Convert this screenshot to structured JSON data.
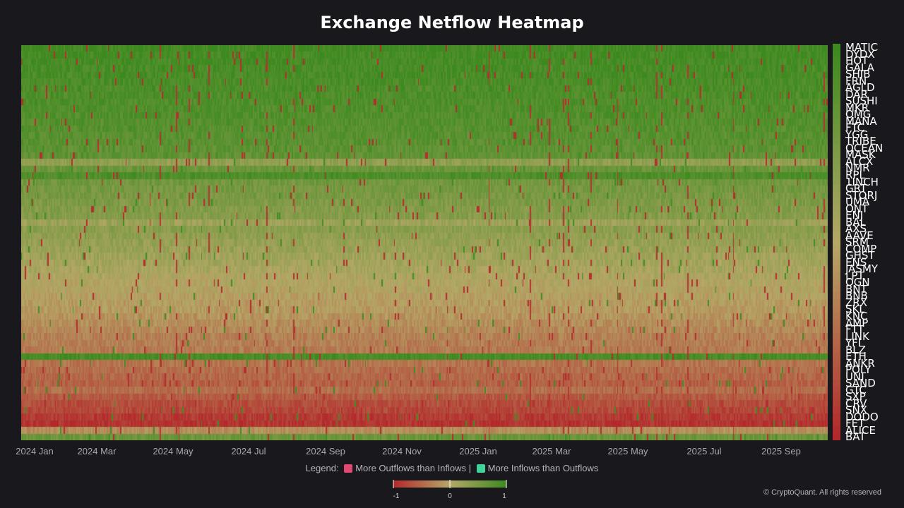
{
  "title": "Exchange Netflow Heatmap",
  "legend": {
    "label": "Legend:",
    "outflow_label": "More Outflows than Inflows |",
    "inflow_label": "More Inflows than Outflows",
    "outflow_color": "#e04a72",
    "inflow_color": "#3fd49a"
  },
  "colorbar": {
    "min_label": "-1",
    "mid_label": "0",
    "max_label": "1",
    "low_color": "#b3282b",
    "mid_color": "#b5a867",
    "high_color": "#3c8a1f"
  },
  "credit": "© CryptoQuant. All rights reserved",
  "chart_data": {
    "type": "heatmap",
    "title": "Exchange Netflow Heatmap",
    "x_ticks": [
      "2024 Jan",
      "2024 Mar",
      "2024 May",
      "2024 Jul",
      "2024 Sep",
      "2024 Nov",
      "2025 Jan",
      "2025 Mar",
      "2025 May",
      "2025 Jul",
      "2025 Sep"
    ],
    "x_range": [
      "2024-01-01",
      "2025-10-15"
    ],
    "color_range": [
      -1,
      1
    ],
    "coins": [
      "MATIC",
      "DYDX",
      "HOT",
      "GALA",
      "SHIB",
      "FRN",
      "AGLD",
      "DAR",
      "SUSHI",
      "MKR",
      "OMG",
      "MANA",
      "FTC",
      "YGG",
      "TRIBE",
      "OCEAN",
      "MASK",
      "ALCX",
      "NMR",
      "RPL",
      "1INCH",
      "GRT",
      "STORJ",
      "UMA",
      "ONT",
      "ENJ",
      "BAL",
      "AXS",
      "AAVE",
      "SRM",
      "COMP",
      "GHST",
      "ENS",
      "JASMY",
      "LPT",
      "OGN",
      "BNT",
      "BNB",
      "ZRX",
      "SKL",
      "KNC",
      "AMP",
      "FTT",
      "LINK",
      "YFI",
      "BLZ",
      "ETH",
      "ANKR",
      "POLY",
      "UNI",
      "SAND",
      "GTC",
      "SXP",
      "CRV",
      "SNX",
      "DODO",
      "FET",
      "ALICE",
      "BAT"
    ],
    "row_mean_netflow": [
      0.95,
      0.93,
      0.92,
      0.9,
      0.9,
      0.88,
      0.87,
      0.86,
      0.84,
      0.83,
      0.82,
      0.8,
      0.78,
      0.76,
      0.75,
      0.72,
      0.7,
      0.3,
      0.62,
      0.85,
      0.55,
      0.52,
      0.5,
      0.46,
      0.42,
      0.4,
      0.2,
      0.36,
      0.3,
      0.26,
      0.22,
      0.18,
      0.15,
      0.1,
      0.05,
      0.02,
      0.0,
      -0.05,
      -0.08,
      -0.1,
      -0.15,
      -0.2,
      -0.25,
      -0.3,
      -0.32,
      -0.35,
      0.9,
      -0.4,
      -0.45,
      -0.5,
      -0.55,
      -0.45,
      -0.6,
      -0.7,
      -0.75,
      -0.85,
      -0.9,
      -0.2,
      0.6
    ]
  }
}
